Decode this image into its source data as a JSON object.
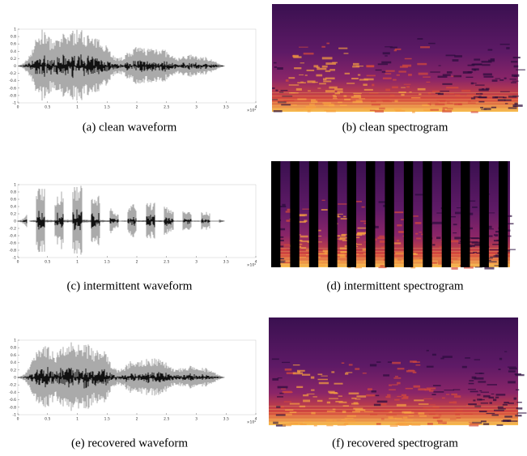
{
  "panels": [
    {
      "kind": "waveform",
      "caption": "(a)  clean waveform",
      "xlim": [
        0,
        4
      ],
      "ylim": [
        -1,
        1
      ],
      "xticks": [
        0,
        0.5,
        1,
        1.5,
        2,
        2.5,
        3,
        3.5,
        4
      ],
      "yticks": [
        -1,
        -0.8,
        -0.6,
        -0.4,
        -0.2,
        0,
        0.2,
        0.4,
        0.6,
        0.8,
        1
      ],
      "exponent_label": "×10⁴"
    },
    {
      "kind": "spectrogram",
      "caption": "(b)  clean spectrogram"
    },
    {
      "kind": "waveform",
      "caption": "(c)  intermittent waveform",
      "xlim": [
        0,
        4
      ],
      "ylim": [
        -1,
        1
      ],
      "xticks": [
        0,
        0.5,
        1,
        1.5,
        2,
        2.5,
        3,
        3.5,
        4
      ],
      "yticks": [
        -1,
        -0.8,
        -0.6,
        -0.4,
        -0.2,
        0,
        0.2,
        0.4,
        0.6,
        0.8,
        1
      ],
      "exponent_label": "×10⁴"
    },
    {
      "kind": "spectrogram",
      "caption": "(d)  intermittent spectrogram"
    },
    {
      "kind": "waveform",
      "caption": "(e)  recovered waveform",
      "xlim": [
        0,
        4
      ],
      "ylim": [
        -1,
        1
      ],
      "xticks": [
        0,
        0.5,
        1,
        1.5,
        2,
        2.5,
        3,
        3.5,
        4
      ],
      "yticks": [
        -1,
        -0.8,
        -0.6,
        -0.4,
        -0.2,
        0,
        0.2,
        0.4,
        0.6,
        0.8,
        1
      ],
      "exponent_label": "×10⁴"
    },
    {
      "kind": "spectrogram",
      "caption": "(f)  recovered spectrogram"
    }
  ]
}
